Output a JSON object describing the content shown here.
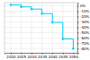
{
  "chart_data": {
    "type": "line",
    "series": [
      {
        "type": "line",
        "color": "#00CCFF",
        "x": [
          2020,
          2025,
          2025,
          2030,
          2030,
          2035,
          2035,
          2040,
          2040,
          2045,
          2045,
          2050,
          2050
        ],
        "values": [
          2,
          2,
          -2,
          -2,
          -6,
          -6,
          -14.5,
          -14.5,
          -31,
          -31,
          -62,
          -62,
          -80
        ]
      },
      {
        "type": "scatter",
        "color": "#00CCFF",
        "x": [
          2020,
          2025,
          2030,
          2035,
          2040,
          2045,
          2050
        ],
        "values": [
          2,
          -2,
          -6,
          -14.5,
          -31,
          -62,
          -80
        ]
      }
    ],
    "xlim": [
      2017,
      2052
    ],
    "ylim": [
      -88,
      6
    ],
    "xticks": [
      2020,
      2025,
      2030,
      2035,
      2040,
      2045,
      2050
    ],
    "yticks": [
      {
        "value": 0,
        "label": "0%"
      },
      {
        "value": -10,
        "label": "-10%"
      },
      {
        "value": -20,
        "label": "-20%"
      },
      {
        "value": -30,
        "label": "-30%"
      },
      {
        "value": -40,
        "label": "-40%"
      },
      {
        "value": -50,
        "label": "-50%"
      },
      {
        "value": -60,
        "label": "-60%"
      },
      {
        "value": -70,
        "label": "-70%"
      },
      {
        "value": -80,
        "label": "-80%"
      }
    ],
    "grid": true
  }
}
